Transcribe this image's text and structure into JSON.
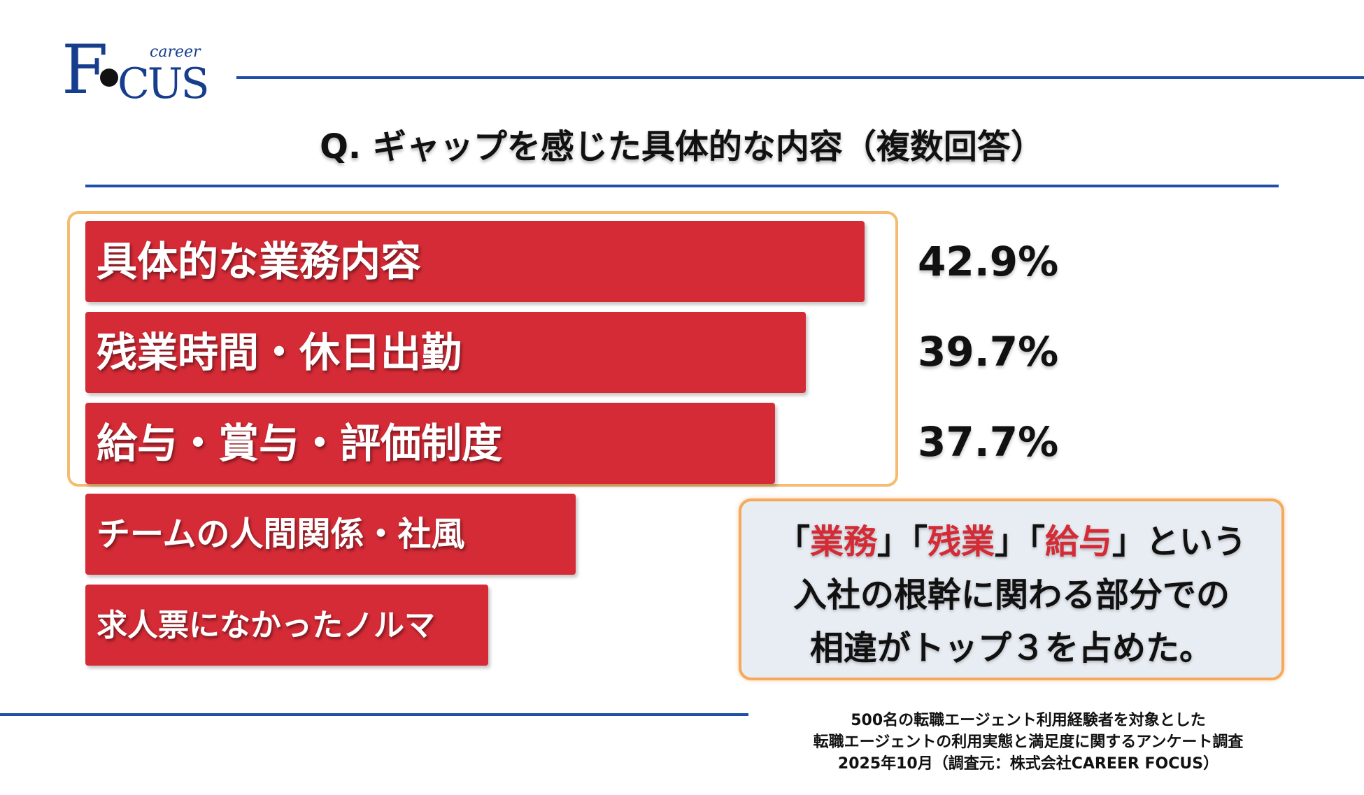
{
  "logo": {
    "primary": "FOCUS",
    "secondary": "career"
  },
  "title": "Q. ギャップを感じた具体的な内容（複数回答）",
  "chart_data": {
    "type": "bar",
    "orientation": "horizontal",
    "categories": [
      "具体的な業務内容",
      "残業時間・休日出勤",
      "給与・賞与・評価制度",
      "チームの人間関係・社風",
      "求人票になかったノルマ"
    ],
    "values": [
      42.9,
      39.7,
      37.7,
      null,
      null
    ],
    "value_labels": [
      "42.9%",
      "39.7%",
      "37.7%",
      null,
      null
    ],
    "bar_length_fraction": [
      1.0,
      0.925,
      0.885,
      0.629,
      0.517
    ],
    "highlighted_top": 3,
    "bar_color": "#d52b36"
  },
  "callout": {
    "keywords": [
      "業務",
      "残業",
      "給与"
    ],
    "line1_open": "「",
    "line1_close1": "」「",
    "line1_close2": "」「",
    "line1_end": "」という",
    "line2": "入社の根幹に関わる部分での",
    "line3": "相違がトップ３を占めた。",
    "keyword_color": "#d52b36"
  },
  "source": {
    "line1": "500名の転職エージェント利用経験者を対象とした",
    "line2": "転職エージェントの利用実態と満足度に関するアンケート調査",
    "line3": "2025年10月（調査元：株式会社CAREER FOCUS）"
  },
  "colors": {
    "accent_blue": "#1f4fa8",
    "bar_red": "#d52b36",
    "highlight_orange": "#f5a95a",
    "callout_bg": "#e8edf3"
  }
}
